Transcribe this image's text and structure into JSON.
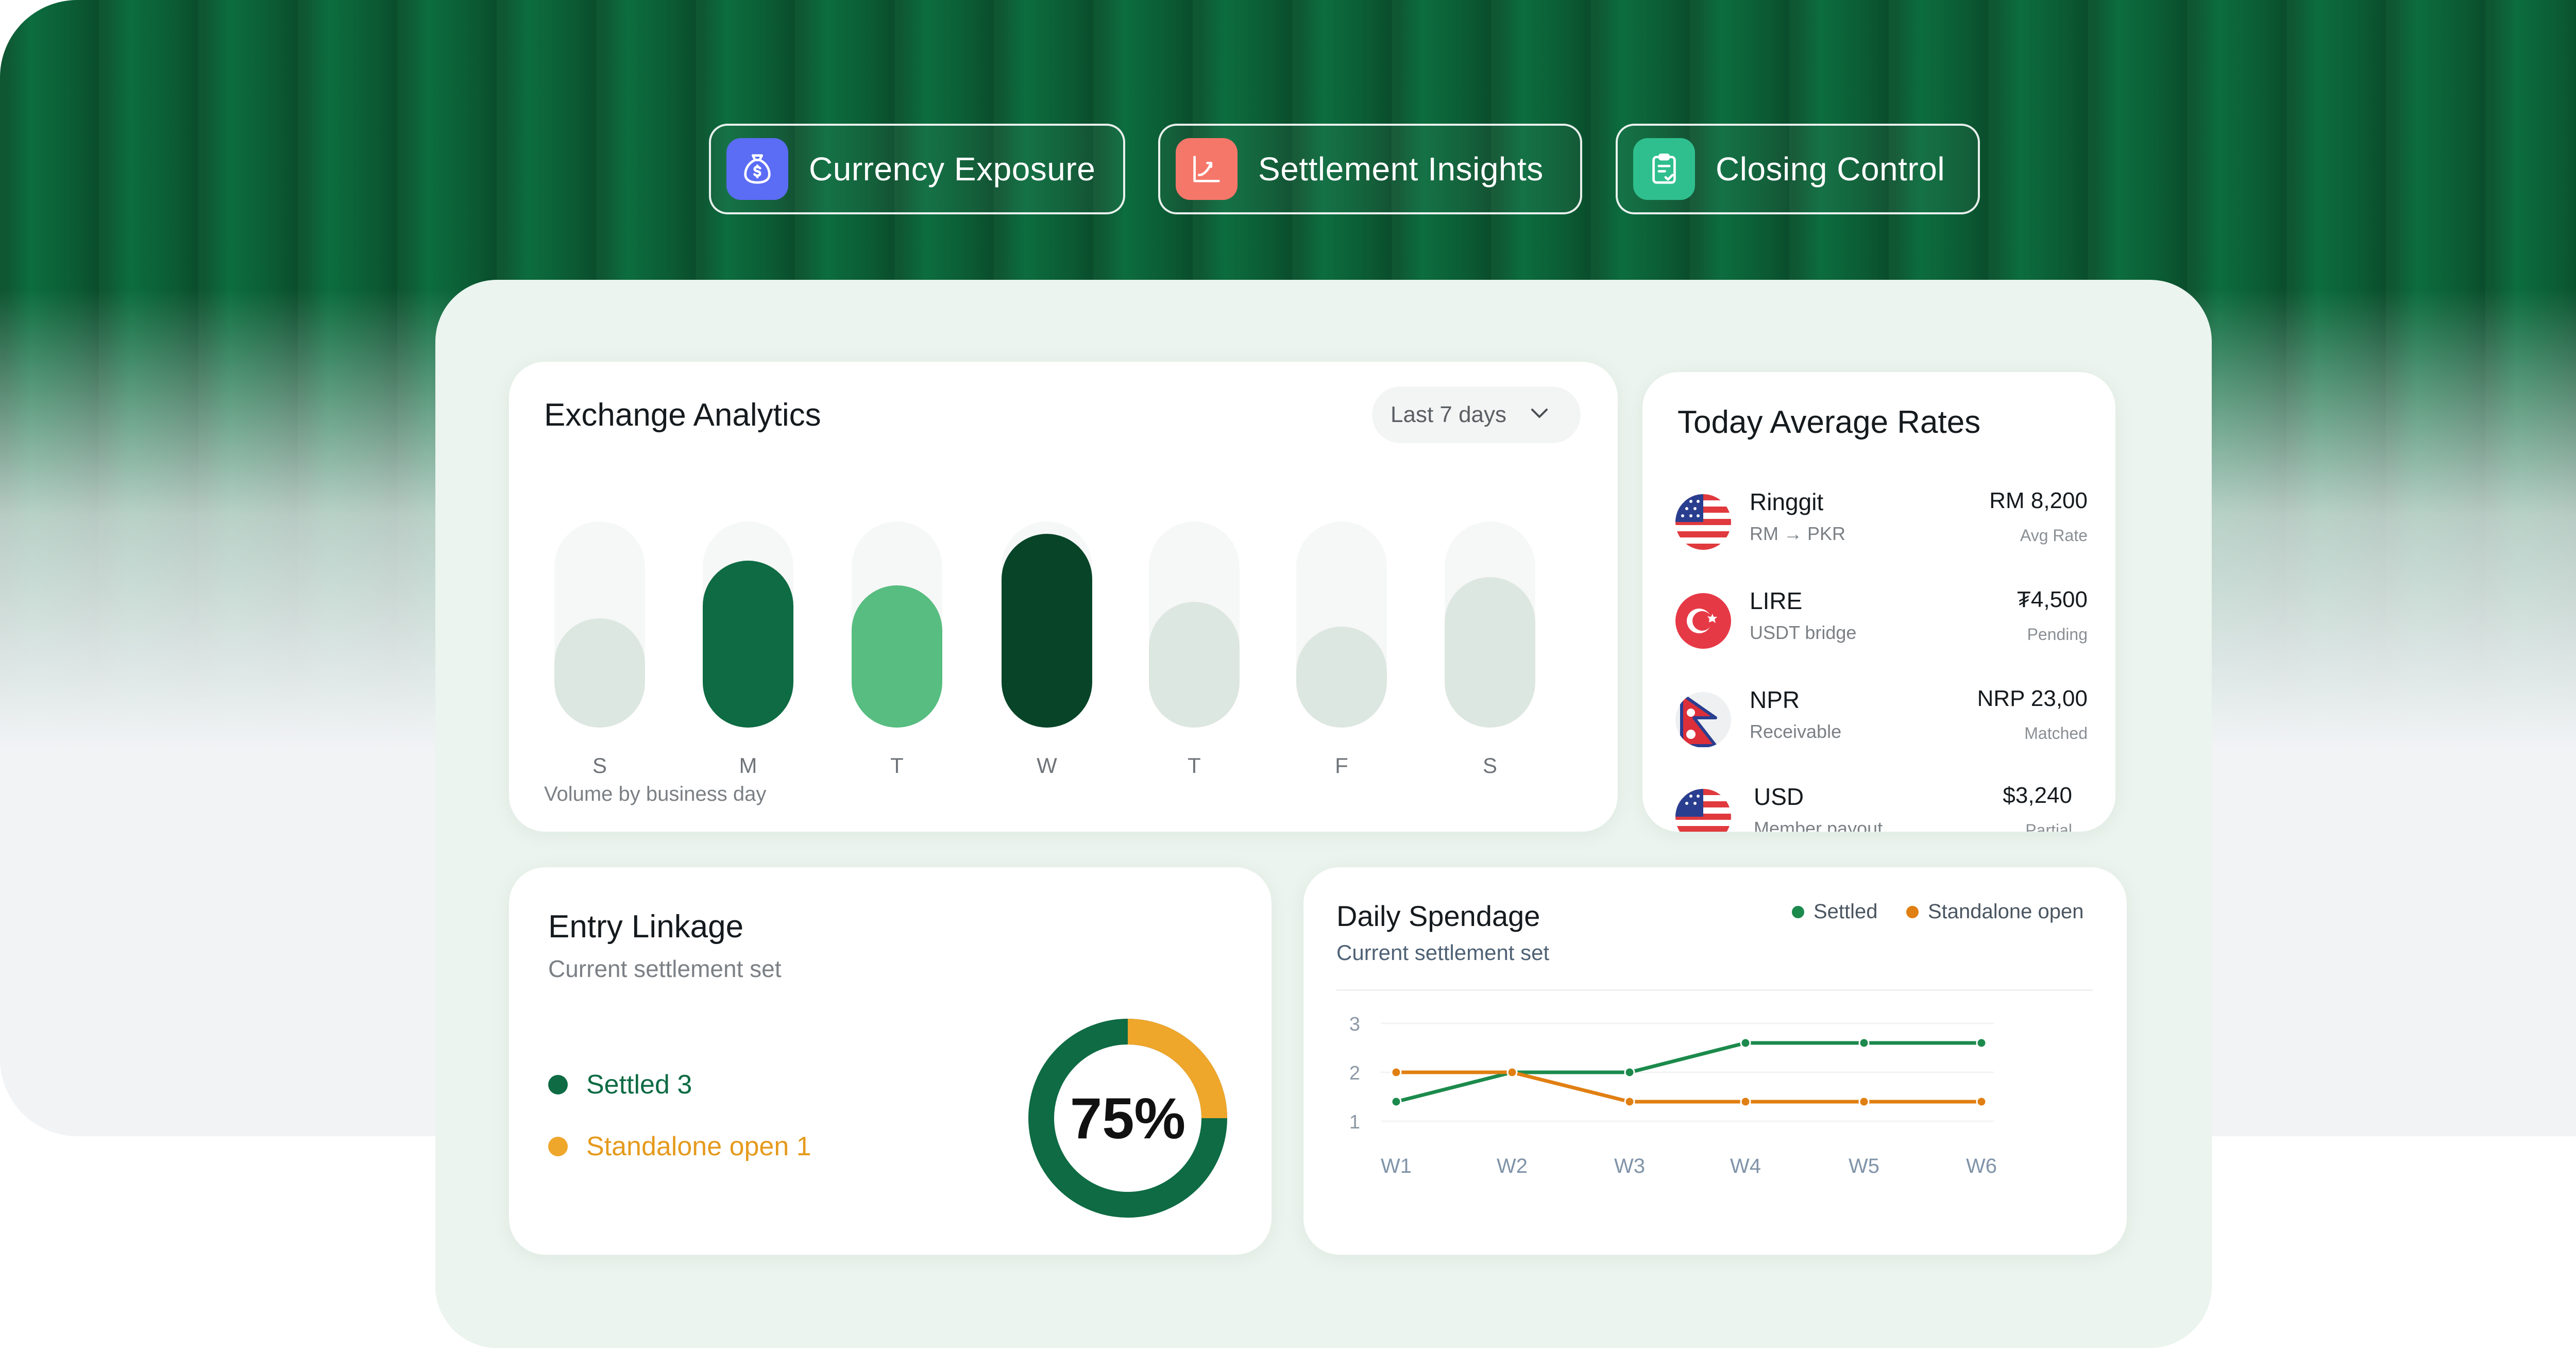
{
  "tabs": [
    {
      "label": "Currency Exposure",
      "icon": "money-bag-icon",
      "color": "#5b6cf5"
    },
    {
      "label": "Settlement Insights",
      "icon": "chart-trend-icon",
      "color": "#f5776a"
    },
    {
      "label": "Closing Control",
      "icon": "clipboard-check-icon",
      "color": "#2fbf8e"
    }
  ],
  "exchange": {
    "title": "Exchange Analytics",
    "range_label": "Last 7 days",
    "caption": "Volume by business day"
  },
  "chart_data": [
    {
      "type": "bar",
      "categories": [
        "S",
        "M",
        "T",
        "W",
        "T",
        "F",
        "S"
      ],
      "values": [
        0.53,
        0.81,
        0.69,
        0.94,
        0.61,
        0.49,
        0.73
      ],
      "colors": [
        "#dde7e1",
        "#0e6b44",
        "#57bd80",
        "#074428",
        "#dde7e1",
        "#dde7e1",
        "#dde7e1"
      ],
      "title": "",
      "xlabel": "",
      "ylabel": "",
      "ylim": [
        0,
        1
      ]
    },
    {
      "type": "line",
      "categories": [
        "W1",
        "W2",
        "W3",
        "W4",
        "W5",
        "W6"
      ],
      "y_ticks": [
        "1",
        "2",
        "3"
      ],
      "ylim": [
        1,
        3
      ],
      "series": [
        {
          "name": "Settled",
          "values": [
            1.4,
            2.0,
            2.0,
            2.6,
            2.6,
            2.6
          ],
          "color": "#1b8a4c"
        },
        {
          "name": "Standalone open",
          "values": [
            2.0,
            2.0,
            1.4,
            1.4,
            1.4,
            1.4
          ],
          "color": "#e07f12"
        }
      ],
      "grid": true,
      "legend": "top-right"
    }
  ],
  "rates": {
    "title": "Today Average Rates",
    "items": [
      {
        "name": "Ringgit",
        "sub": "RM → PKR",
        "value": "RM 8,200",
        "note": "Avg Rate",
        "flag": "us-flag-icon"
      },
      {
        "name": "LIRE",
        "sub": "USDT bridge",
        "value": "₮4,500",
        "note": "Pending",
        "flag": "turkey-flag-icon"
      },
      {
        "name": "NPR",
        "sub": "Receivable",
        "value": "NRP 23,00",
        "note": "Matched",
        "flag": "nepal-flag-icon"
      },
      {
        "name": "USD",
        "sub": "Member payout",
        "value": "$3,240",
        "note": "Partial",
        "flag": "us-flag-icon"
      }
    ]
  },
  "linkage": {
    "title": "Entry Linkage",
    "subtitle": "Current settlement set",
    "settled_label": "Settled 3",
    "open_label": "Standalone open 1",
    "percent_label": "75%",
    "percent": 0.75,
    "settled_color": "#0e6b44",
    "open_color": "#eea62b"
  },
  "spend": {
    "title": "Daily Spendage",
    "subtitle": "Current settlement set",
    "legend_settled": "Settled",
    "legend_open": "Standalone open"
  }
}
